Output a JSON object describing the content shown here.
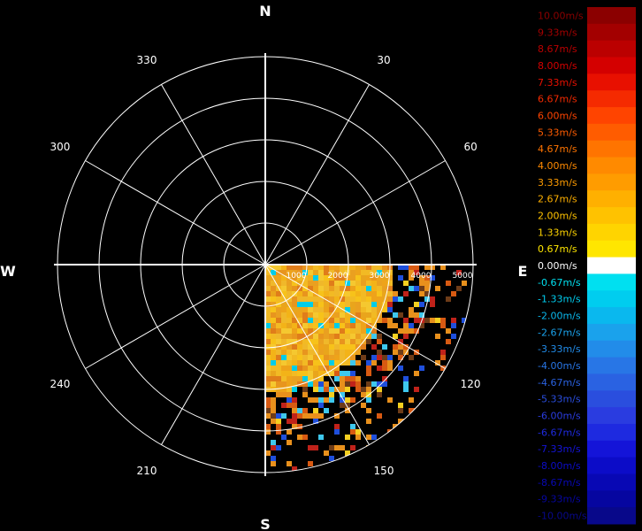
{
  "chart_data": {
    "type": "polar-radar",
    "unit": "m/s",
    "cardinals": {
      "north": "N",
      "east": "E",
      "south": "S",
      "west": "W"
    },
    "azimuth_labels": [
      "30",
      "60",
      "120",
      "150",
      "210",
      "240",
      "300",
      "330"
    ],
    "azimuths": [
      30,
      60,
      120,
      150,
      210,
      240,
      300,
      330
    ],
    "range_labels": [
      "1000",
      "2000",
      "3000",
      "4000",
      "5000"
    ],
    "range_rings": [
      1000,
      2000,
      3000,
      4000,
      5000
    ],
    "sector_deg": [
      90,
      180
    ],
    "colorbar": {
      "labels": [
        "10.00m/s",
        "9.33m/s",
        "8.67m/s",
        "8.00m/s",
        "7.33m/s",
        "6.67m/s",
        "6.00m/s",
        "5.33m/s",
        "4.67m/s",
        "4.00m/s",
        "3.33m/s",
        "2.67m/s",
        "2.00m/s",
        "1.33m/s",
        "0.67m/s",
        "0.00m/s",
        "-0.67m/s",
        "-1.33m/s",
        "-2.00m/s",
        "-2.67m/s",
        "-3.33m/s",
        "-4.00m/s",
        "-4.67m/s",
        "-5.33m/s",
        "-6.00m/s",
        "-6.67m/s",
        "-7.33m/s",
        "-8.00m/s",
        "-8.67m/s",
        "-9.33m/s",
        "-10.00m/s"
      ],
      "colors": [
        "#8b0000",
        "#a30000",
        "#bb0000",
        "#d40000",
        "#e81000",
        "#f52a00",
        "#ff4400",
        "#ff5c00",
        "#ff7400",
        "#ff8a00",
        "#ff9c00",
        "#ffb000",
        "#ffc200",
        "#ffd400",
        "#ffe600",
        "#ffffff",
        "#00e0f0",
        "#00cdef",
        "#0ab8ee",
        "#1aa2ec",
        "#228ce9",
        "#2876e6",
        "#2a62e2",
        "#2a4ede",
        "#2a3ce0",
        "#1e2ae0",
        "#1414d8",
        "#0c0cc8",
        "#0808b4",
        "#0606a0",
        "#08088a"
      ]
    }
  }
}
